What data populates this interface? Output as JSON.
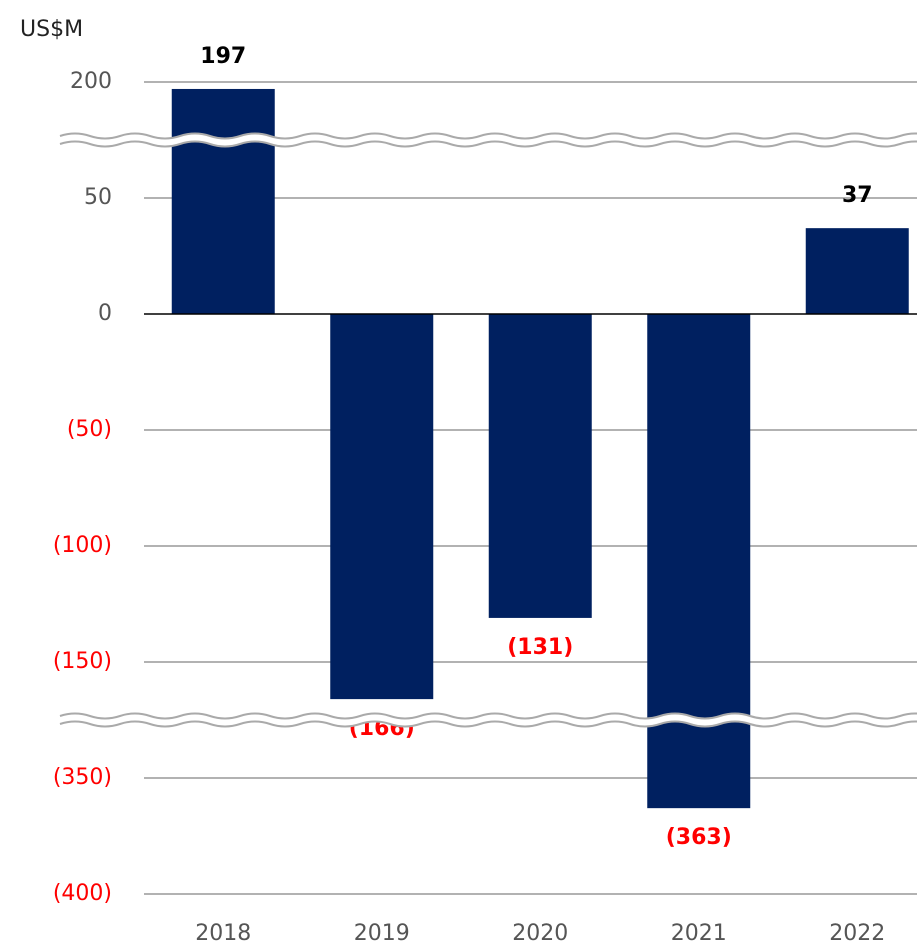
{
  "chart_data": {
    "type": "bar",
    "y_label": "US$M",
    "categories": [
      "2018",
      "2019",
      "2020",
      "2021",
      "2022"
    ],
    "values": [
      197,
      -166,
      -131,
      -363,
      37
    ],
    "value_labels": [
      "197",
      "(166)",
      "(131)",
      "(363)",
      "37"
    ],
    "color": "#002060",
    "negative_color": "#ff0000",
    "ylim": [
      -400,
      200
    ],
    "yticks": [
      200,
      50,
      0,
      {
        "value": -50,
        "label": "(50)"
      },
      {
        "value": -100,
        "label": "(100)"
      },
      {
        "value": -150,
        "label": "(150)"
      },
      {
        "value": -350,
        "label": "(350)"
      },
      {
        "value": -400,
        "label": "(400)"
      }
    ],
    "grid": true,
    "axis_break": true
  }
}
